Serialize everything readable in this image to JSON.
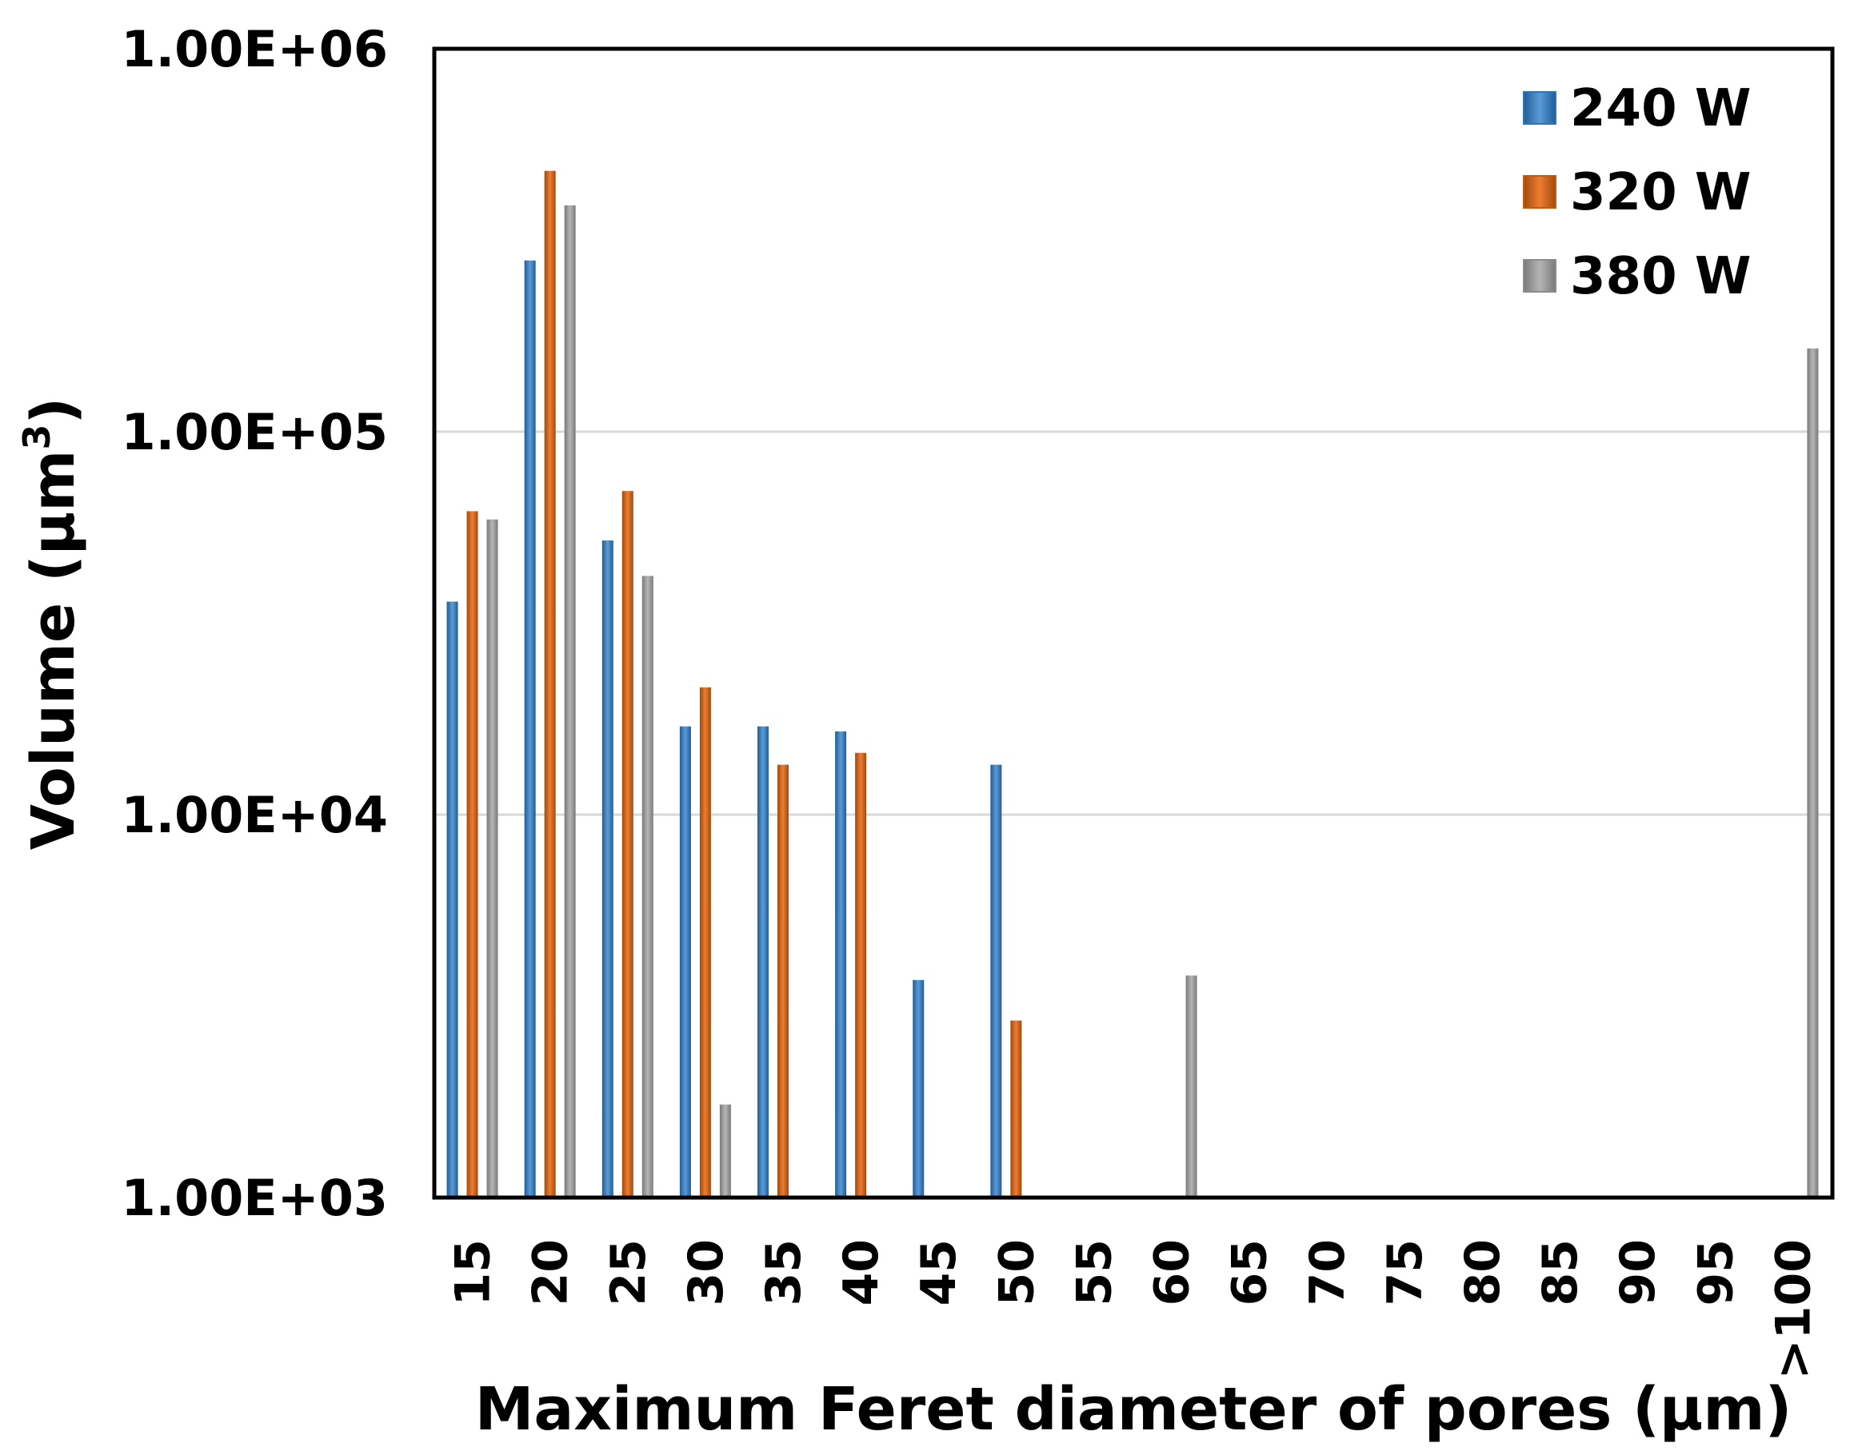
{
  "chart_data": {
    "type": "bar",
    "xlabel": "Maximum Feret diameter of pores (µm)",
    "ylabel": "Volume (µm",
    "ylabel_superscript": "3",
    "ylabel_close": ")",
    "yscale": "log",
    "ylim": [
      1000,
      1000000
    ],
    "yticks": [
      1000,
      10000,
      100000,
      1000000
    ],
    "ytick_labels": [
      "1.00E+03",
      "1.00E+04",
      "1.00E+05",
      "1.00E+06"
    ],
    "grid": "horizontal",
    "legend_position": "top-right",
    "categories": [
      "15",
      "20",
      "25",
      "30",
      "35",
      "40",
      "45",
      "50",
      "55",
      "60",
      "65",
      "70",
      "75",
      "80",
      "85",
      "90",
      "95",
      ">100"
    ],
    "series": [
      {
        "name": "240 W",
        "color": "#2e75b6",
        "values": [
          36000,
          280000,
          52000,
          17000,
          17000,
          16500,
          3700,
          13500,
          null,
          null,
          null,
          null,
          null,
          null,
          null,
          null,
          null,
          null
        ]
      },
      {
        "name": "320 W",
        "color": "#c55a11",
        "values": [
          62000,
          480000,
          70000,
          21500,
          13500,
          14500,
          null,
          2900,
          null,
          null,
          null,
          null,
          null,
          null,
          null,
          null,
          null,
          null
        ]
      },
      {
        "name": "380 W",
        "color": "#8c8c8c",
        "values": [
          59000,
          390000,
          42000,
          1750,
          null,
          null,
          null,
          null,
          null,
          3800,
          null,
          null,
          null,
          null,
          null,
          null,
          null,
          165000
        ]
      }
    ]
  }
}
